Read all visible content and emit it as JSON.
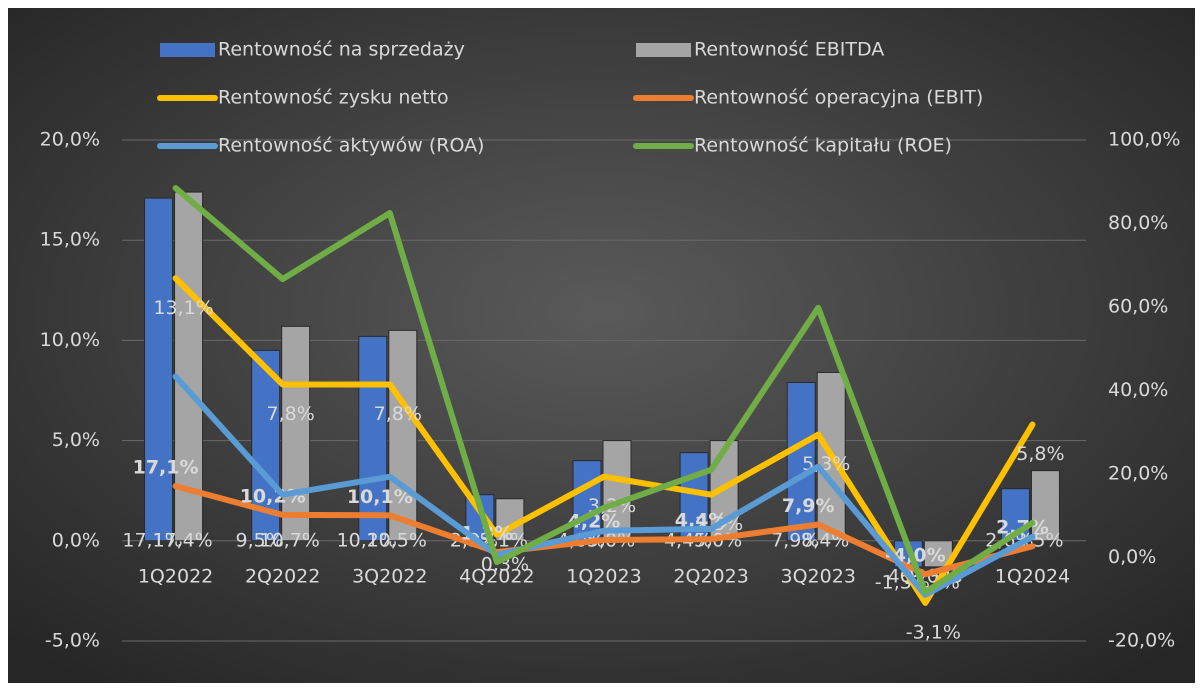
{
  "chart_data": {
    "type": "combo",
    "categories": [
      "1Q2022",
      "2Q2022",
      "3Q2022",
      "4Q2022",
      "1Q2023",
      "2Q2023",
      "3Q2023",
      "4Q2023",
      "1Q2024"
    ],
    "ylim": [
      -5,
      20
    ],
    "yticks": [
      {
        "value": -5,
        "label": "-5,0%"
      },
      {
        "value": 0,
        "label": "0,0%"
      },
      {
        "value": 5,
        "label": "5,0%"
      },
      {
        "value": 10,
        "label": "10,0%"
      },
      {
        "value": 15,
        "label": "15,0%"
      },
      {
        "value": 20,
        "label": "20,0%"
      }
    ],
    "y2lim": [
      -20,
      100
    ],
    "y2ticks": [
      {
        "value": -20,
        "label": "-20,0%"
      },
      {
        "value": 0,
        "label": "0,0%"
      },
      {
        "value": 20,
        "label": "20,0%"
      },
      {
        "value": 40,
        "label": "40,0%"
      },
      {
        "value": 60,
        "label": "60,0%"
      },
      {
        "value": 80,
        "label": "80,0%"
      },
      {
        "value": 100,
        "label": "100,0%"
      }
    ],
    "grid": true,
    "legend": "top",
    "series": [
      {
        "name": "Rentowność na sprzedaży",
        "type": "bar",
        "color": "#4472c4",
        "values": [
          17.1,
          9.5,
          10.2,
          2.3,
          4.0,
          4.4,
          7.9,
          -1.3,
          2.6
        ],
        "value_labels": [
          "17,1%",
          "9,5%",
          "10,2%",
          "2,3%",
          "4,0%",
          "4,4%",
          "7,9%",
          "-1,3%",
          "2,6%"
        ]
      },
      {
        "name": "Rentowność EBITDA",
        "type": "bar",
        "color": "#a5a5a5",
        "values": [
          17.4,
          10.7,
          10.5,
          2.1,
          5.0,
          5.0,
          8.4,
          -1.3,
          3.5
        ],
        "value_labels": [
          "17,4%",
          "10,7%",
          "10,5%",
          "2,1%",
          "5,0%",
          "5,0%",
          "8,4%",
          "-1,3%",
          "3,5%"
        ]
      },
      {
        "name": "Rentowność zysku netto",
        "type": "line",
        "color": "#ffc000",
        "values": [
          13.1,
          7.8,
          7.8,
          0.3,
          3.2,
          2.3,
          5.3,
          -3.1,
          5.8
        ],
        "value_labels": [
          "13,1%",
          "7,8%",
          "7,8%",
          "0,3%",
          "3,2%",
          "2,3%",
          "5,3%",
          "-3,1%",
          "5,8%"
        ]
      },
      {
        "name": "Rentowność operacyjna (EBIT)",
        "type": "line",
        "axis": "y2",
        "color": "#ed7d31",
        "values": [
          17.1,
          10.2,
          10.1,
          1.3,
          4.2,
          4.4,
          7.9,
          -4.0,
          2.7
        ],
        "value_labels": [
          "17,1%",
          "10,2%",
          "10,1%",
          "1,3%",
          "4,2%",
          "4,4%",
          "7,9%",
          "-4,0%",
          "2,7%"
        ]
      },
      {
        "name": "Rentowność aktywów (ROA)",
        "type": "line",
        "color": "#5b9bd5",
        "values": [
          8.2,
          2.3,
          3.2,
          -0.7,
          0.5,
          0.6,
          3.7,
          -2.7,
          0.2
        ]
      },
      {
        "name": "Rentowność kapitału (ROE)",
        "type": "line",
        "axis": "y2",
        "color": "#70ad47",
        "values": [
          88.5,
          66.7,
          82.5,
          -1.1,
          11.9,
          21.0,
          59.8,
          -8.3,
          8.3
        ]
      }
    ]
  }
}
